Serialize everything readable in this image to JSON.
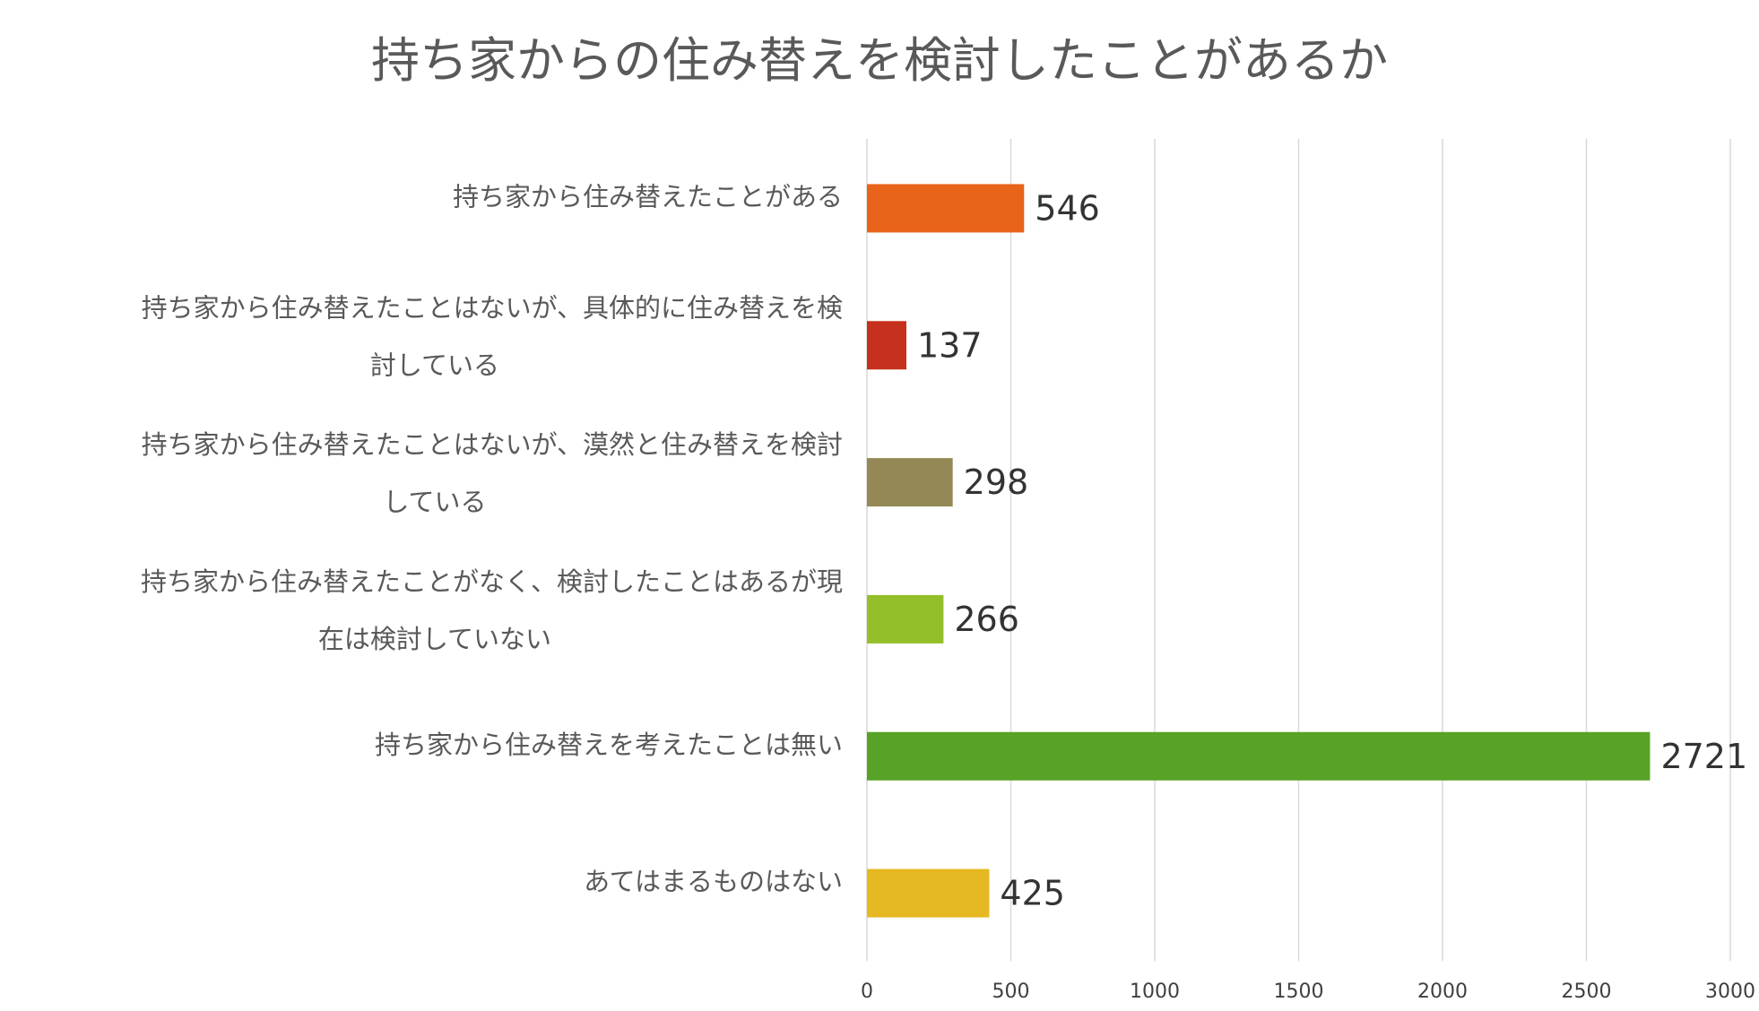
{
  "chart_data": {
    "type": "bar",
    "orientation": "horizontal",
    "title": "持ち家からの住み替えを検討したことがあるか",
    "categories": [
      [
        "持ち家から住み替えたことがある"
      ],
      [
        "持ち家から住み替えたことはないが、具体的に住み替えを検",
        "討している"
      ],
      [
        "持ち家から住み替えたことはないが、漠然と住み替えを検討",
        "している"
      ],
      [
        "持ち家から住み替えたことがなく、検討したことはあるが現",
        "在は検討していない"
      ],
      [
        "持ち家から住み替えを考えたことは無い"
      ],
      [
        "あてはまるものはない"
      ]
    ],
    "values": [
      546,
      137,
      298,
      266,
      2721,
      425
    ],
    "colors": [
      "#E8641B",
      "#C5311C",
      "#938856",
      "#93C02A",
      "#57A325",
      "#E6B822"
    ],
    "xlim": [
      0,
      3000
    ],
    "xticks": [
      0,
      500,
      1000,
      1500,
      2000,
      2500,
      3000
    ],
    "grid": true,
    "legend": false
  }
}
